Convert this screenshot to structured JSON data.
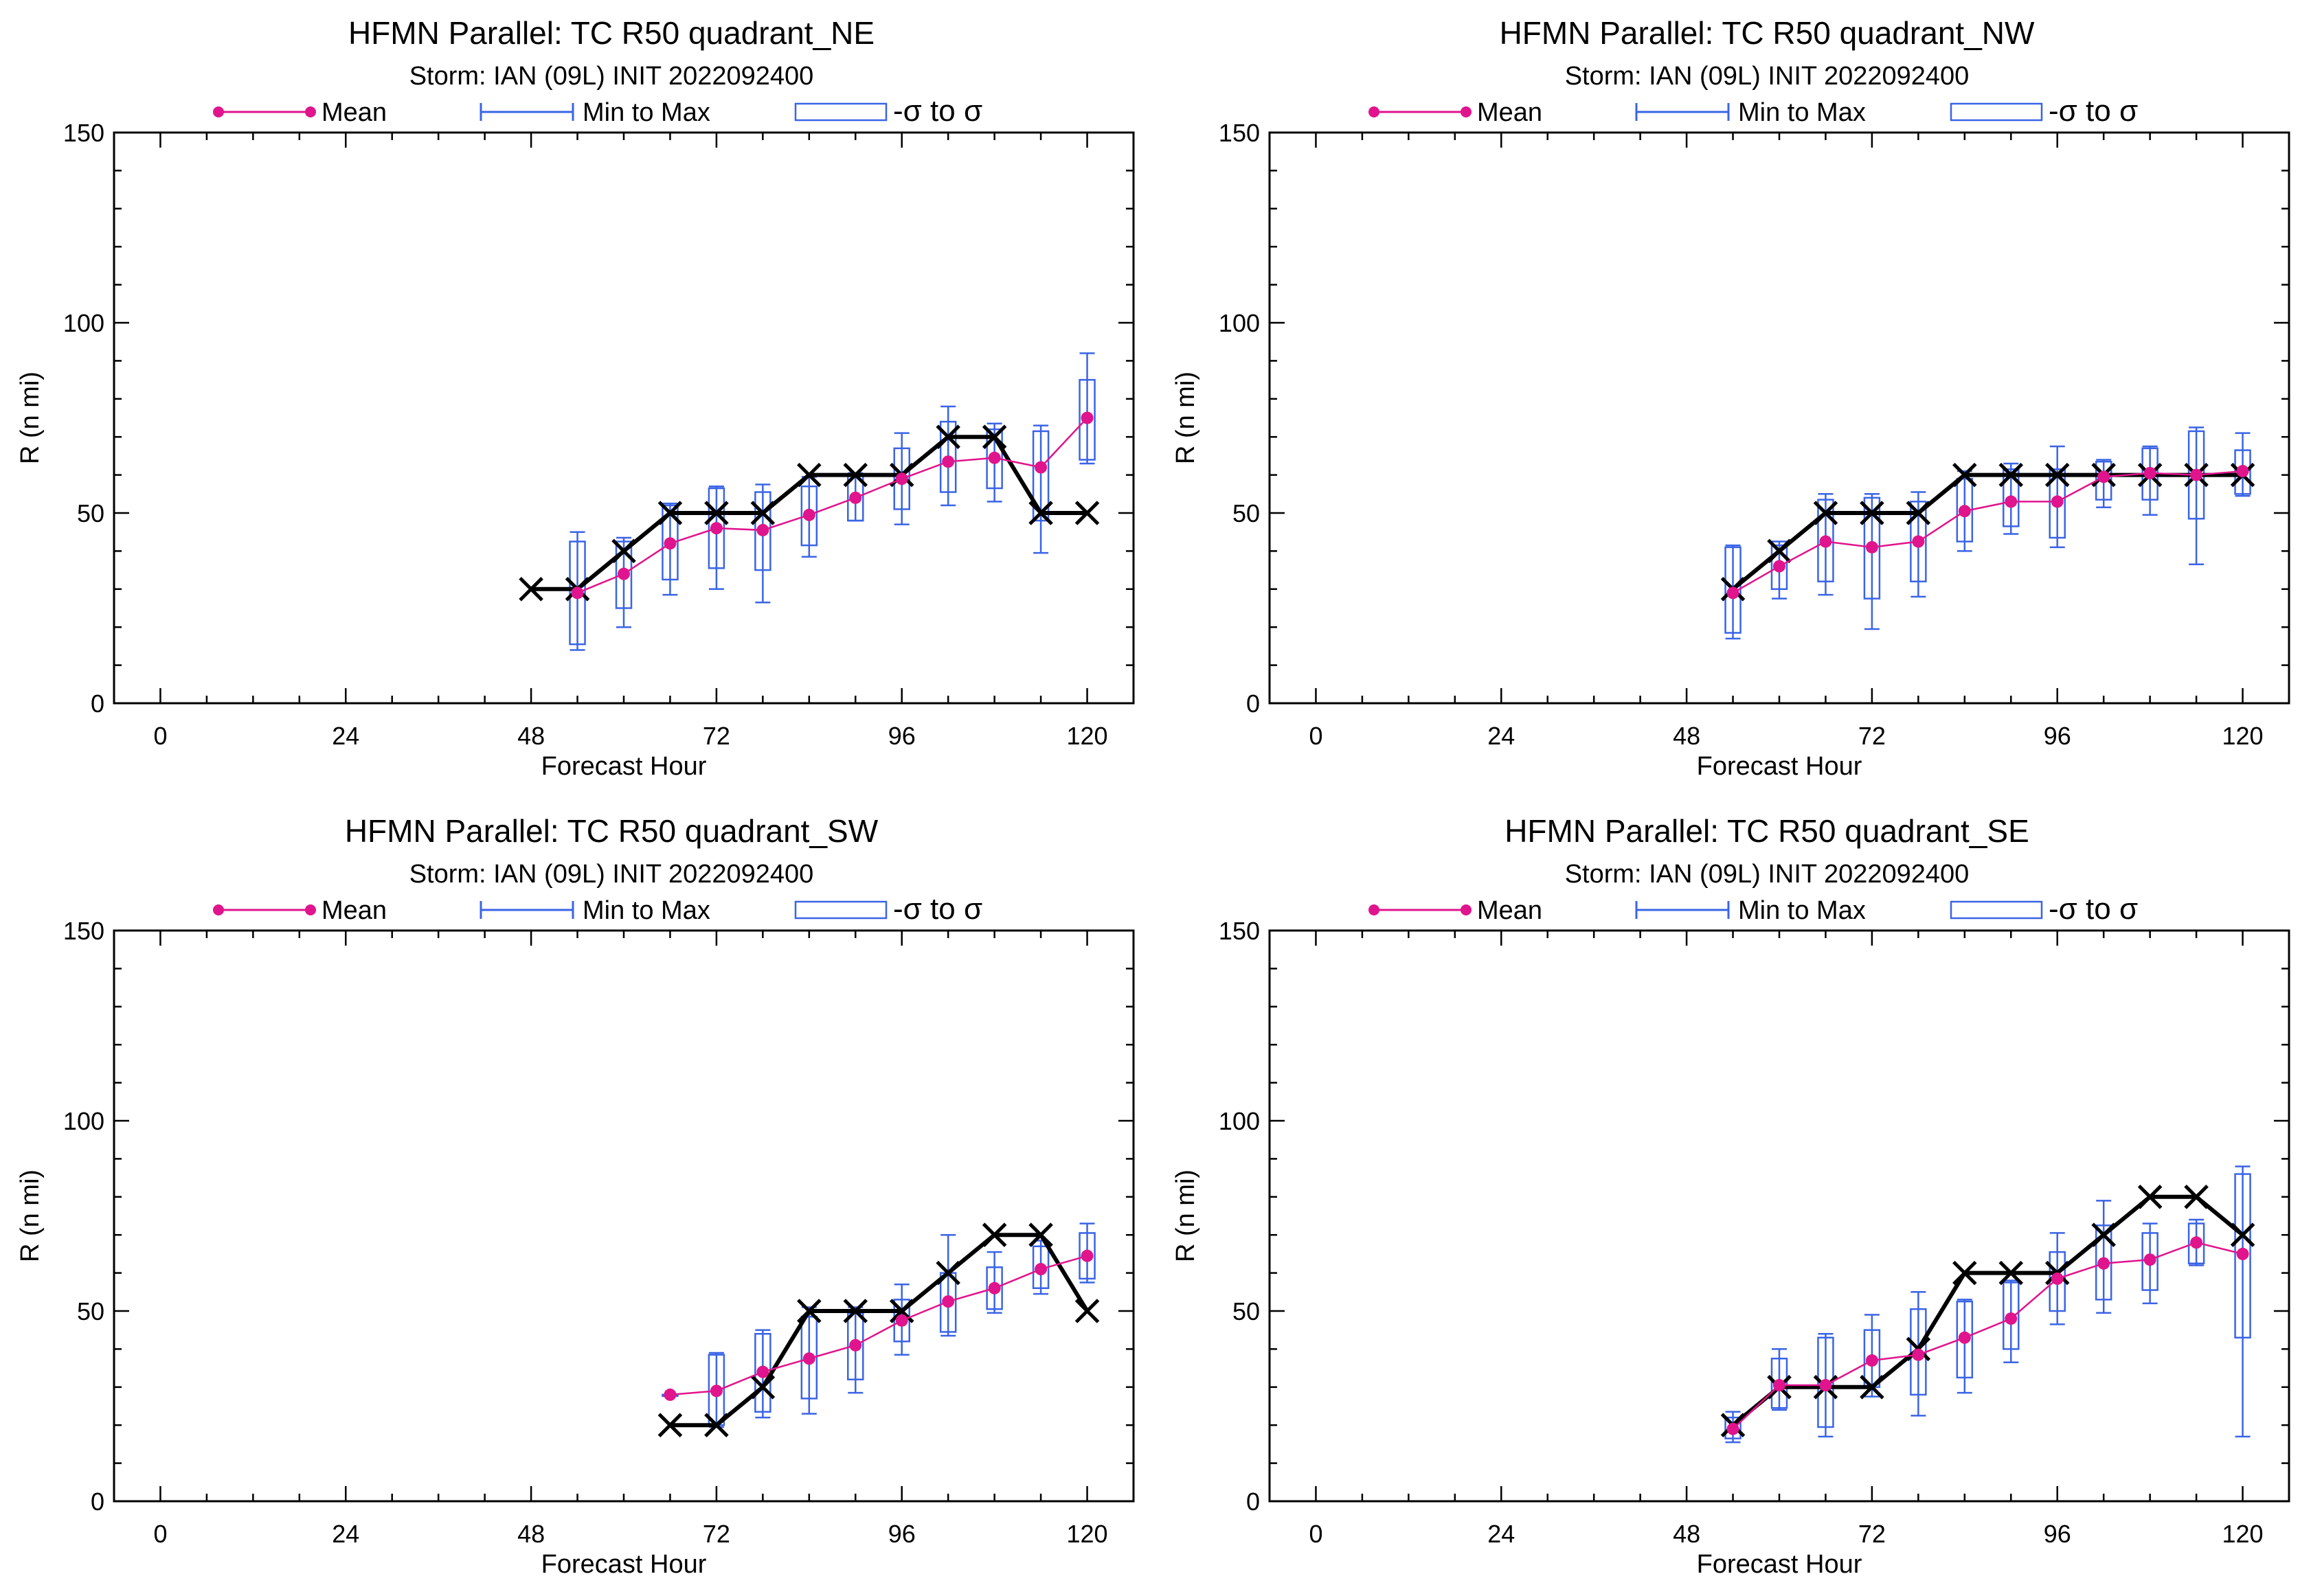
{
  "figure": {
    "legend": {
      "mean_label": "Mean",
      "minmax_label": "Min to Max",
      "sigma_label": "-σ to σ"
    },
    "colors": {
      "mean": "#e0148c",
      "minmax": "#3a64e6",
      "obs": "#000000",
      "frame": "#000000"
    }
  },
  "chart_data": [
    {
      "type": "line",
      "title": "HFMN Parallel: TC  R50 quadrant_NE",
      "subtitle": "Storm: IAN (09L) INIT 2022092400",
      "xlabel": "Forecast Hour",
      "ylabel": "R (n mi)",
      "xlim": [
        -6,
        126
      ],
      "ylim": [
        0,
        150
      ],
      "xticks": [
        0,
        24,
        48,
        72,
        96,
        120
      ],
      "yticks": [
        0,
        50,
        100,
        150
      ],
      "grid": false,
      "legend_position": "top",
      "observed": {
        "x": [
          48,
          54,
          60,
          66,
          72,
          78,
          84,
          90,
          96,
          102,
          108,
          114,
          120
        ],
        "y": [
          30,
          30,
          40,
          50,
          50,
          50,
          60,
          60,
          60,
          70,
          70,
          50,
          50
        ]
      },
      "mean": {
        "x": [
          54,
          60,
          66,
          72,
          78,
          84,
          90,
          96,
          102,
          108,
          114,
          120
        ],
        "y": [
          29,
          34,
          42,
          46,
          45.5,
          49.5,
          54,
          59,
          63.5,
          64.5,
          62,
          75
        ]
      },
      "boxes": [
        {
          "x": 54,
          "min": 14,
          "low": 15.5,
          "high": 42.5,
          "max": 45
        },
        {
          "x": 60,
          "min": 20,
          "low": 25,
          "high": 42.5,
          "max": 43.5
        },
        {
          "x": 66,
          "min": 28.5,
          "low": 32.5,
          "high": 52,
          "max": 52.5
        },
        {
          "x": 72,
          "min": 30,
          "low": 35.5,
          "high": 56.5,
          "max": 57
        },
        {
          "x": 78,
          "min": 26.5,
          "low": 35,
          "high": 55.5,
          "max": 57.5
        },
        {
          "x": 84,
          "min": 38.5,
          "low": 41.5,
          "high": 57,
          "max": 59.5
        },
        {
          "x": 90,
          "min": 48,
          "low": 48,
          "high": 60,
          "max": 60.5
        },
        {
          "x": 96,
          "min": 47,
          "low": 51,
          "high": 67,
          "max": 71
        },
        {
          "x": 102,
          "min": 52,
          "low": 55.5,
          "high": 74,
          "max": 78
        },
        {
          "x": 108,
          "min": 53,
          "low": 56.5,
          "high": 72,
          "max": 73.5
        },
        {
          "x": 114,
          "min": 39.5,
          "low": 48,
          "high": 71.5,
          "max": 73
        },
        {
          "x": 120,
          "min": 63,
          "low": 64,
          "high": 85,
          "max": 92
        }
      ]
    },
    {
      "type": "line",
      "title": "HFMN Parallel: TC  R50 quadrant_NW",
      "subtitle": "Storm: IAN (09L) INIT 2022092400",
      "xlabel": "Forecast Hour",
      "ylabel": "R (n mi)",
      "xlim": [
        -6,
        126
      ],
      "ylim": [
        0,
        150
      ],
      "xticks": [
        0,
        24,
        48,
        72,
        96,
        120
      ],
      "yticks": [
        0,
        50,
        100,
        150
      ],
      "grid": false,
      "legend_position": "top",
      "observed": {
        "x": [
          54,
          60,
          66,
          72,
          78,
          84,
          90,
          96,
          102,
          108,
          114,
          120
        ],
        "y": [
          30,
          40,
          50,
          50,
          50,
          60,
          60,
          60,
          60,
          60,
          60,
          60
        ]
      },
      "mean": {
        "x": [
          54,
          60,
          66,
          72,
          78,
          84,
          90,
          96,
          102,
          108,
          114,
          120
        ],
        "y": [
          29,
          36,
          42.5,
          41,
          42.5,
          50.5,
          53,
          53,
          59.5,
          60.5,
          60,
          61
        ]
      },
      "boxes": [
        {
          "x": 54,
          "min": 17,
          "low": 18.5,
          "high": 41,
          "max": 41.5
        },
        {
          "x": 60,
          "min": 27.5,
          "low": 30,
          "high": 41.5,
          "max": 42.5
        },
        {
          "x": 66,
          "min": 28.5,
          "low": 32,
          "high": 53.5,
          "max": 55
        },
        {
          "x": 72,
          "min": 19.5,
          "low": 27.5,
          "high": 54,
          "max": 55
        },
        {
          "x": 78,
          "min": 28,
          "low": 32,
          "high": 53,
          "max": 55.5
        },
        {
          "x": 84,
          "min": 40,
          "low": 42.5,
          "high": 59,
          "max": 61
        },
        {
          "x": 90,
          "min": 44.5,
          "low": 46.5,
          "high": 61.5,
          "max": 63
        },
        {
          "x": 96,
          "min": 41,
          "low": 43.5,
          "high": 61.5,
          "max": 67.5
        },
        {
          "x": 102,
          "min": 51.5,
          "low": 53.5,
          "high": 63.5,
          "max": 64
        },
        {
          "x": 108,
          "min": 49.5,
          "low": 53.5,
          "high": 67,
          "max": 67.5
        },
        {
          "x": 114,
          "min": 36.5,
          "low": 48.5,
          "high": 71.5,
          "max": 72.5
        },
        {
          "x": 120,
          "min": 54.5,
          "low": 55,
          "high": 66.5,
          "max": 71
        }
      ]
    },
    {
      "type": "line",
      "title": "HFMN Parallel: TC  R50 quadrant_SW",
      "subtitle": "Storm: IAN (09L) INIT 2022092400",
      "xlabel": "Forecast Hour",
      "ylabel": "R (n mi)",
      "xlim": [
        -6,
        126
      ],
      "ylim": [
        0,
        150
      ],
      "xticks": [
        0,
        24,
        48,
        72,
        96,
        120
      ],
      "yticks": [
        0,
        50,
        100,
        150
      ],
      "grid": false,
      "legend_position": "top",
      "observed": {
        "x": [
          66,
          72,
          78,
          84,
          90,
          96,
          102,
          108,
          114,
          120
        ],
        "y": [
          20,
          20,
          30,
          50,
          50,
          50,
          60,
          70,
          70,
          50
        ]
      },
      "mean": {
        "x": [
          66,
          72,
          78,
          84,
          90,
          96,
          102,
          108,
          114,
          120
        ],
        "y": [
          28,
          29,
          34,
          37.5,
          41,
          47.5,
          52.5,
          56,
          61,
          64.5
        ]
      },
      "boxes": [
        {
          "x": 66,
          "min": 28,
          "low": 28,
          "high": 28,
          "max": 28
        },
        {
          "x": 72,
          "min": 19.5,
          "low": 20,
          "high": 38.5,
          "max": 39
        },
        {
          "x": 78,
          "min": 22,
          "low": 23.5,
          "high": 44,
          "max": 45
        },
        {
          "x": 84,
          "min": 23,
          "low": 27,
          "high": 48.5,
          "max": 51
        },
        {
          "x": 90,
          "min": 28.5,
          "low": 32,
          "high": 49.5,
          "max": 51
        },
        {
          "x": 96,
          "min": 38.5,
          "low": 42,
          "high": 53,
          "max": 57
        },
        {
          "x": 102,
          "min": 43.5,
          "low": 44.5,
          "high": 60,
          "max": 70
        },
        {
          "x": 108,
          "min": 49.5,
          "low": 50.5,
          "high": 61.5,
          "max": 65.5
        },
        {
          "x": 114,
          "min": 54.5,
          "low": 56,
          "high": 67,
          "max": 68.5
        },
        {
          "x": 120,
          "min": 57.5,
          "low": 58.5,
          "high": 70.5,
          "max": 73
        }
      ]
    },
    {
      "type": "line",
      "title": "HFMN Parallel: TC  R50 quadrant_SE",
      "subtitle": "Storm: IAN (09L) INIT 2022092400",
      "xlabel": "Forecast Hour",
      "ylabel": "R (n mi)",
      "xlim": [
        -6,
        126
      ],
      "ylim": [
        0,
        150
      ],
      "xticks": [
        0,
        24,
        48,
        72,
        96,
        120
      ],
      "yticks": [
        0,
        50,
        100,
        150
      ],
      "grid": false,
      "legend_position": "top",
      "observed": {
        "x": [
          54,
          60,
          66,
          72,
          78,
          84,
          90,
          96,
          102,
          108,
          114,
          120
        ],
        "y": [
          20,
          30,
          30,
          30,
          40,
          60,
          60,
          60,
          70,
          80,
          80,
          70
        ]
      },
      "mean": {
        "x": [
          54,
          60,
          66,
          72,
          78,
          84,
          90,
          96,
          102,
          108,
          114,
          120
        ],
        "y": [
          19,
          30.5,
          30.5,
          37,
          38.5,
          43,
          48,
          58.5,
          62.5,
          63.5,
          68,
          65
        ]
      },
      "boxes": [
        {
          "x": 54,
          "min": 15.5,
          "low": 16.5,
          "high": 22,
          "max": 23.5
        },
        {
          "x": 60,
          "min": 24,
          "low": 24.5,
          "high": 37.5,
          "max": 40
        },
        {
          "x": 66,
          "min": 17,
          "low": 19.5,
          "high": 43,
          "max": 44
        },
        {
          "x": 72,
          "min": 27.5,
          "low": 30,
          "high": 45,
          "max": 49
        },
        {
          "x": 78,
          "min": 22.5,
          "low": 28,
          "high": 50.5,
          "max": 55
        },
        {
          "x": 84,
          "min": 28.5,
          "low": 32.5,
          "high": 52.5,
          "max": 53
        },
        {
          "x": 90,
          "min": 36.5,
          "low": 40,
          "high": 57.5,
          "max": 58
        },
        {
          "x": 96,
          "min": 46.5,
          "low": 50,
          "high": 65.5,
          "max": 70.5
        },
        {
          "x": 102,
          "min": 49.5,
          "low": 53,
          "high": 72.5,
          "max": 79
        },
        {
          "x": 108,
          "min": 52,
          "low": 55.5,
          "high": 70.5,
          "max": 73
        },
        {
          "x": 114,
          "min": 62,
          "low": 62.5,
          "high": 73,
          "max": 74
        },
        {
          "x": 120,
          "min": 17,
          "low": 43,
          "high": 86,
          "max": 88
        }
      ]
    }
  ]
}
